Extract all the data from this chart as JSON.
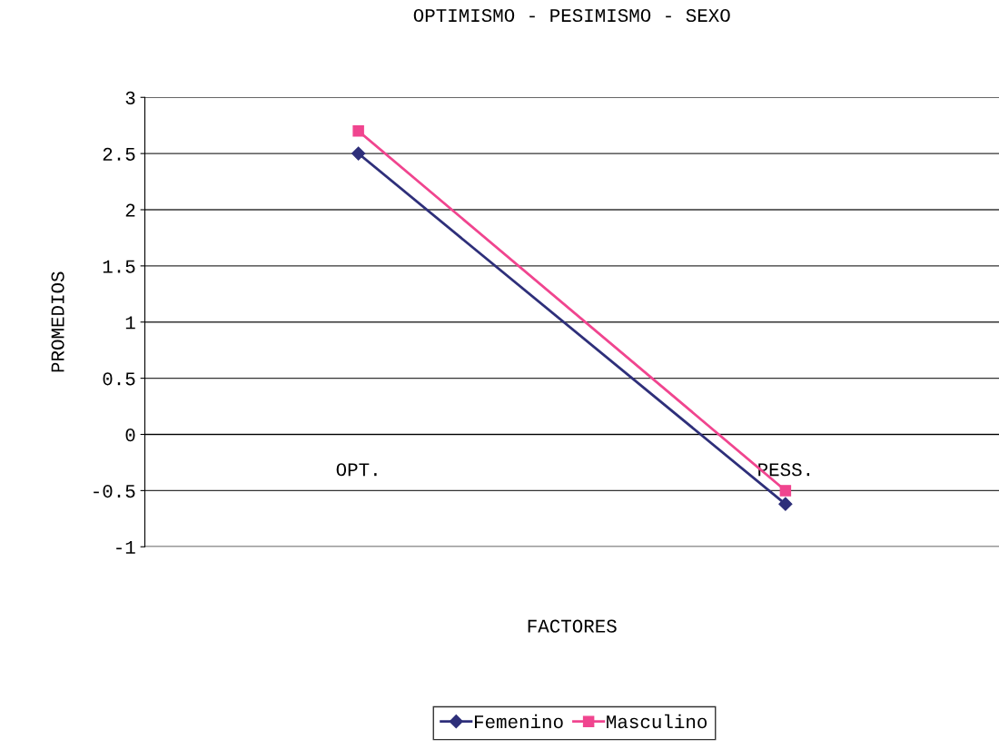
{
  "chart_data": {
    "type": "line",
    "title": "OPTIMISMO - PESIMISMO - SEXO",
    "xlabel": "FACTORES",
    "ylabel": "PROMEDIOS",
    "categories": [
      "OPT.",
      "PESS."
    ],
    "series": [
      {
        "name": "Femenino",
        "color": "#2e2f7a",
        "values": [
          2.5,
          -0.62
        ],
        "marker": "diamond"
      },
      {
        "name": "Masculino",
        "color": "#f0458f",
        "values": [
          2.7,
          -0.5
        ],
        "marker": "square"
      }
    ],
    "ylim": [
      -1,
      3
    ],
    "yticks": [
      -1,
      -0.5,
      0,
      0.5,
      1,
      1.5,
      2,
      2.5,
      3
    ],
    "grid": "y",
    "legend": "bottom",
    "line_style": "solid"
  }
}
